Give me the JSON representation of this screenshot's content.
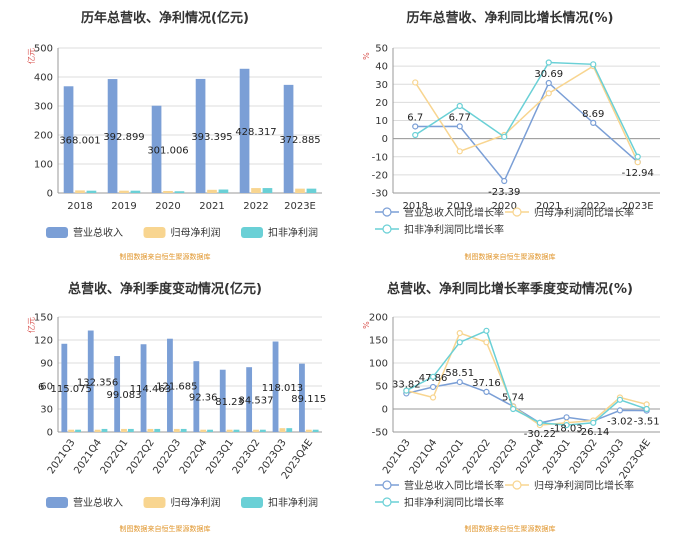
{
  "chart_data": [
    {
      "type": "bar",
      "title": "历年总营收、净利情况(亿元)",
      "yunit": "亿元",
      "categories": [
        "2018",
        "2019",
        "2020",
        "2021",
        "2022",
        "2023E"
      ],
      "ylim": [
        0,
        500
      ],
      "yticks": [
        0,
        100,
        200,
        300,
        400,
        500
      ],
      "series": [
        {
          "name": "营业总收入",
          "color": "#7b9fd6",
          "values": [
            368.001,
            392.899,
            301.006,
            393.395,
            428.317,
            372.885
          ]
        },
        {
          "name": "归母净利润",
          "color": "#f8d590",
          "values": [
            9,
            8,
            7,
            11,
            17,
            15
          ]
        },
        {
          "name": "扣非净利润",
          "color": "#6ad0d6",
          "values": [
            8,
            8,
            6,
            12,
            17,
            15
          ]
        }
      ],
      "data_labels": [
        "368.001",
        "392.899",
        "301.006",
        "393.395",
        "428.317",
        "372.885"
      ],
      "source": "制图数据来自恒生聚源数据库"
    },
    {
      "type": "line",
      "title": "历年总营收、净利同比增长情况(%)",
      "yunit": "%",
      "categories": [
        "2018",
        "2019",
        "2020",
        "2021",
        "2022",
        "2023E"
      ],
      "ylim": [
        -30,
        50
      ],
      "yticks": [
        -30,
        -20,
        -10,
        0,
        10,
        20,
        30,
        40,
        50
      ],
      "series": [
        {
          "name": "营业总收入同比增长率",
          "color": "#7b9fd6",
          "values": [
            6.7,
            6.77,
            -23.39,
            30.69,
            8.69,
            -12.94
          ]
        },
        {
          "name": "归母净利润同比增长率",
          "color": "#f8d590",
          "values": [
            31,
            -7,
            2,
            25,
            40,
            -13
          ]
        },
        {
          "name": "扣非净利润同比增长率",
          "color": "#6ad0d6",
          "values": [
            2,
            18,
            1,
            42,
            41,
            -10
          ]
        }
      ],
      "data_labels": [
        "6.7",
        "6.77",
        "-23.39",
        "30.69",
        "8.69",
        "-12.94"
      ],
      "source": "制图数据来自恒生聚源数据库"
    },
    {
      "type": "bar",
      "title": "总营收、净利季度变动情况(亿元)",
      "yunit": "亿元",
      "categories": [
        "2021Q3",
        "2021Q4",
        "2022Q1",
        "2022Q2",
        "2022Q3",
        "2022Q4",
        "2023Q1",
        "2023Q2",
        "2023Q3",
        "2023Q4E"
      ],
      "ylim": [
        0,
        150
      ],
      "yticks": [
        0,
        30,
        60,
        90,
        120,
        150
      ],
      "series": [
        {
          "name": "营业总收入",
          "color": "#7b9fd6",
          "values": [
            115.075,
            132.356,
            99.083,
            114.463,
            121.685,
            92.36,
            81.23,
            84.537,
            118.013,
            89.115
          ]
        },
        {
          "name": "归母净利润",
          "color": "#f8d590",
          "values": [
            3,
            3,
            4,
            4,
            4,
            3,
            3,
            3,
            5,
            3
          ]
        },
        {
          "name": "扣非净利润",
          "color": "#6ad0d6",
          "values": [
            3,
            4,
            4,
            4,
            4,
            3,
            3,
            3,
            5,
            3
          ]
        }
      ],
      "data_labels": [
        "115.075",
        "132.356",
        "99.083",
        "114.463",
        "121.685",
        "92.36",
        "81.23",
        "84.537",
        "118.013",
        "89.115"
      ],
      "extra_label": "6",
      "source": "制图数据来自恒生聚源数据库"
    },
    {
      "type": "line",
      "title": "总营收、净利同比增长率季度变动情况(%)",
      "yunit": "%",
      "categories": [
        "2021Q3",
        "2021Q4",
        "2022Q1",
        "2022Q2",
        "2022Q3",
        "2022Q4",
        "2023Q1",
        "2023Q2",
        "2023Q3",
        "2023Q4E"
      ],
      "ylim": [
        -50,
        200
      ],
      "yticks": [
        -50,
        0,
        50,
        100,
        150,
        200
      ],
      "series": [
        {
          "name": "营业总收入同比增长率",
          "color": "#7b9fd6",
          "values": [
            33.82,
            47.86,
            58.51,
            37.16,
            5.74,
            -30.22,
            -18.03,
            -26.14,
            -3.02,
            -3.51
          ]
        },
        {
          "name": "归母净利润同比增长率",
          "color": "#f8d590",
          "values": [
            40,
            25,
            165,
            145,
            5,
            -35,
            -30,
            -25,
            25,
            10
          ]
        },
        {
          "name": "扣非净利润同比增长率",
          "color": "#6ad0d6",
          "values": [
            40,
            70,
            145,
            170,
            0,
            -30,
            -35,
            -30,
            20,
            0
          ]
        }
      ],
      "data_labels": [
        "33.82",
        "47.86",
        "58.51",
        "37.16",
        "5.74",
        "-30.22",
        "-18.03",
        "-26.14",
        "-3.02",
        "-3.51"
      ],
      "source": "制图数据来自恒生聚源数据库"
    }
  ]
}
